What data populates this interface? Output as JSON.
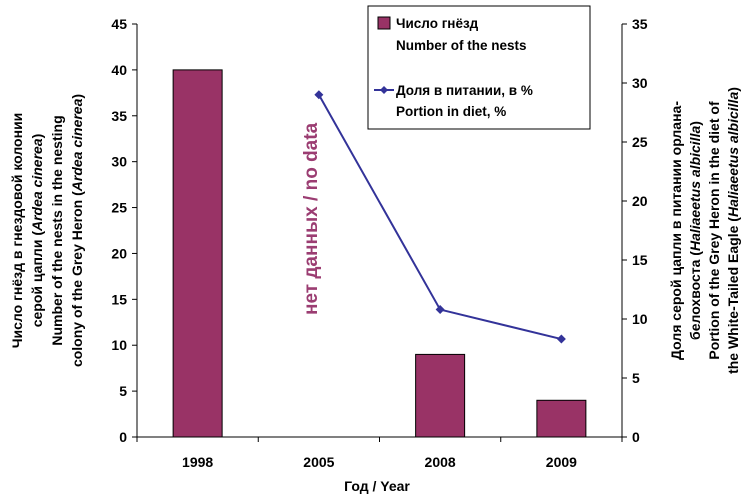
{
  "chart_data": {
    "type": "bar+line",
    "categories": [
      "1998",
      "2005",
      "2008",
      "2009"
    ],
    "xlabel": "Год / Year",
    "series": [
      {
        "name_ru": "Число гнёзд",
        "name_en": "Number of the nests",
        "type": "bar",
        "axis": "left",
        "color": "#993366",
        "values": [
          40,
          null,
          9,
          4
        ]
      },
      {
        "name_ru": "Доля в питании, в %",
        "name_en": "Portion in diet, %",
        "type": "line",
        "axis": "right",
        "color": "#333399",
        "marker": "diamond",
        "values": [
          null,
          29,
          10.8,
          8.3
        ]
      }
    ],
    "left_axis": {
      "ylim": [
        0,
        45
      ],
      "ticks": [
        "0",
        "5",
        "10",
        "15",
        "20",
        "25",
        "30",
        "35",
        "40",
        "45"
      ],
      "label_lines": [
        [
          {
            "t": "Число гнёзд в гнездовой колонии"
          }
        ],
        [
          {
            "t": "серой цапли ("
          },
          {
            "t": "Ardea cinerea",
            "i": true
          },
          {
            "t": ")"
          }
        ],
        [
          {
            "t": "Number of the nests in the nesting"
          }
        ],
        [
          {
            "t": "colony of the Grey Heron ("
          },
          {
            "t": "Ardea cinerea",
            "i": true
          },
          {
            "t": ")"
          }
        ]
      ]
    },
    "right_axis": {
      "ylim": [
        0,
        35
      ],
      "ticks": [
        "0",
        "5",
        "10",
        "15",
        "20",
        "25",
        "30",
        "35"
      ],
      "label_lines": [
        [
          {
            "t": "Доля серой цапли в питании орлана-"
          }
        ],
        [
          {
            "t": "белохвоста ("
          },
          {
            "t": "Haliaeetus albicilla",
            "i": true
          },
          {
            "t": ")"
          }
        ],
        [
          {
            "t": "Portion of the Grey Heron in the diet of"
          }
        ],
        [
          {
            "t": "the White-Tailed Eagle ("
          },
          {
            "t": "Haliaeetus albicilla",
            "i": true
          },
          {
            "t": ")"
          }
        ]
      ]
    },
    "annotation": {
      "category": "2005",
      "text": "нет данных / no data",
      "color": "#9b3d72"
    },
    "legend_position": "top-right",
    "grid": false
  }
}
